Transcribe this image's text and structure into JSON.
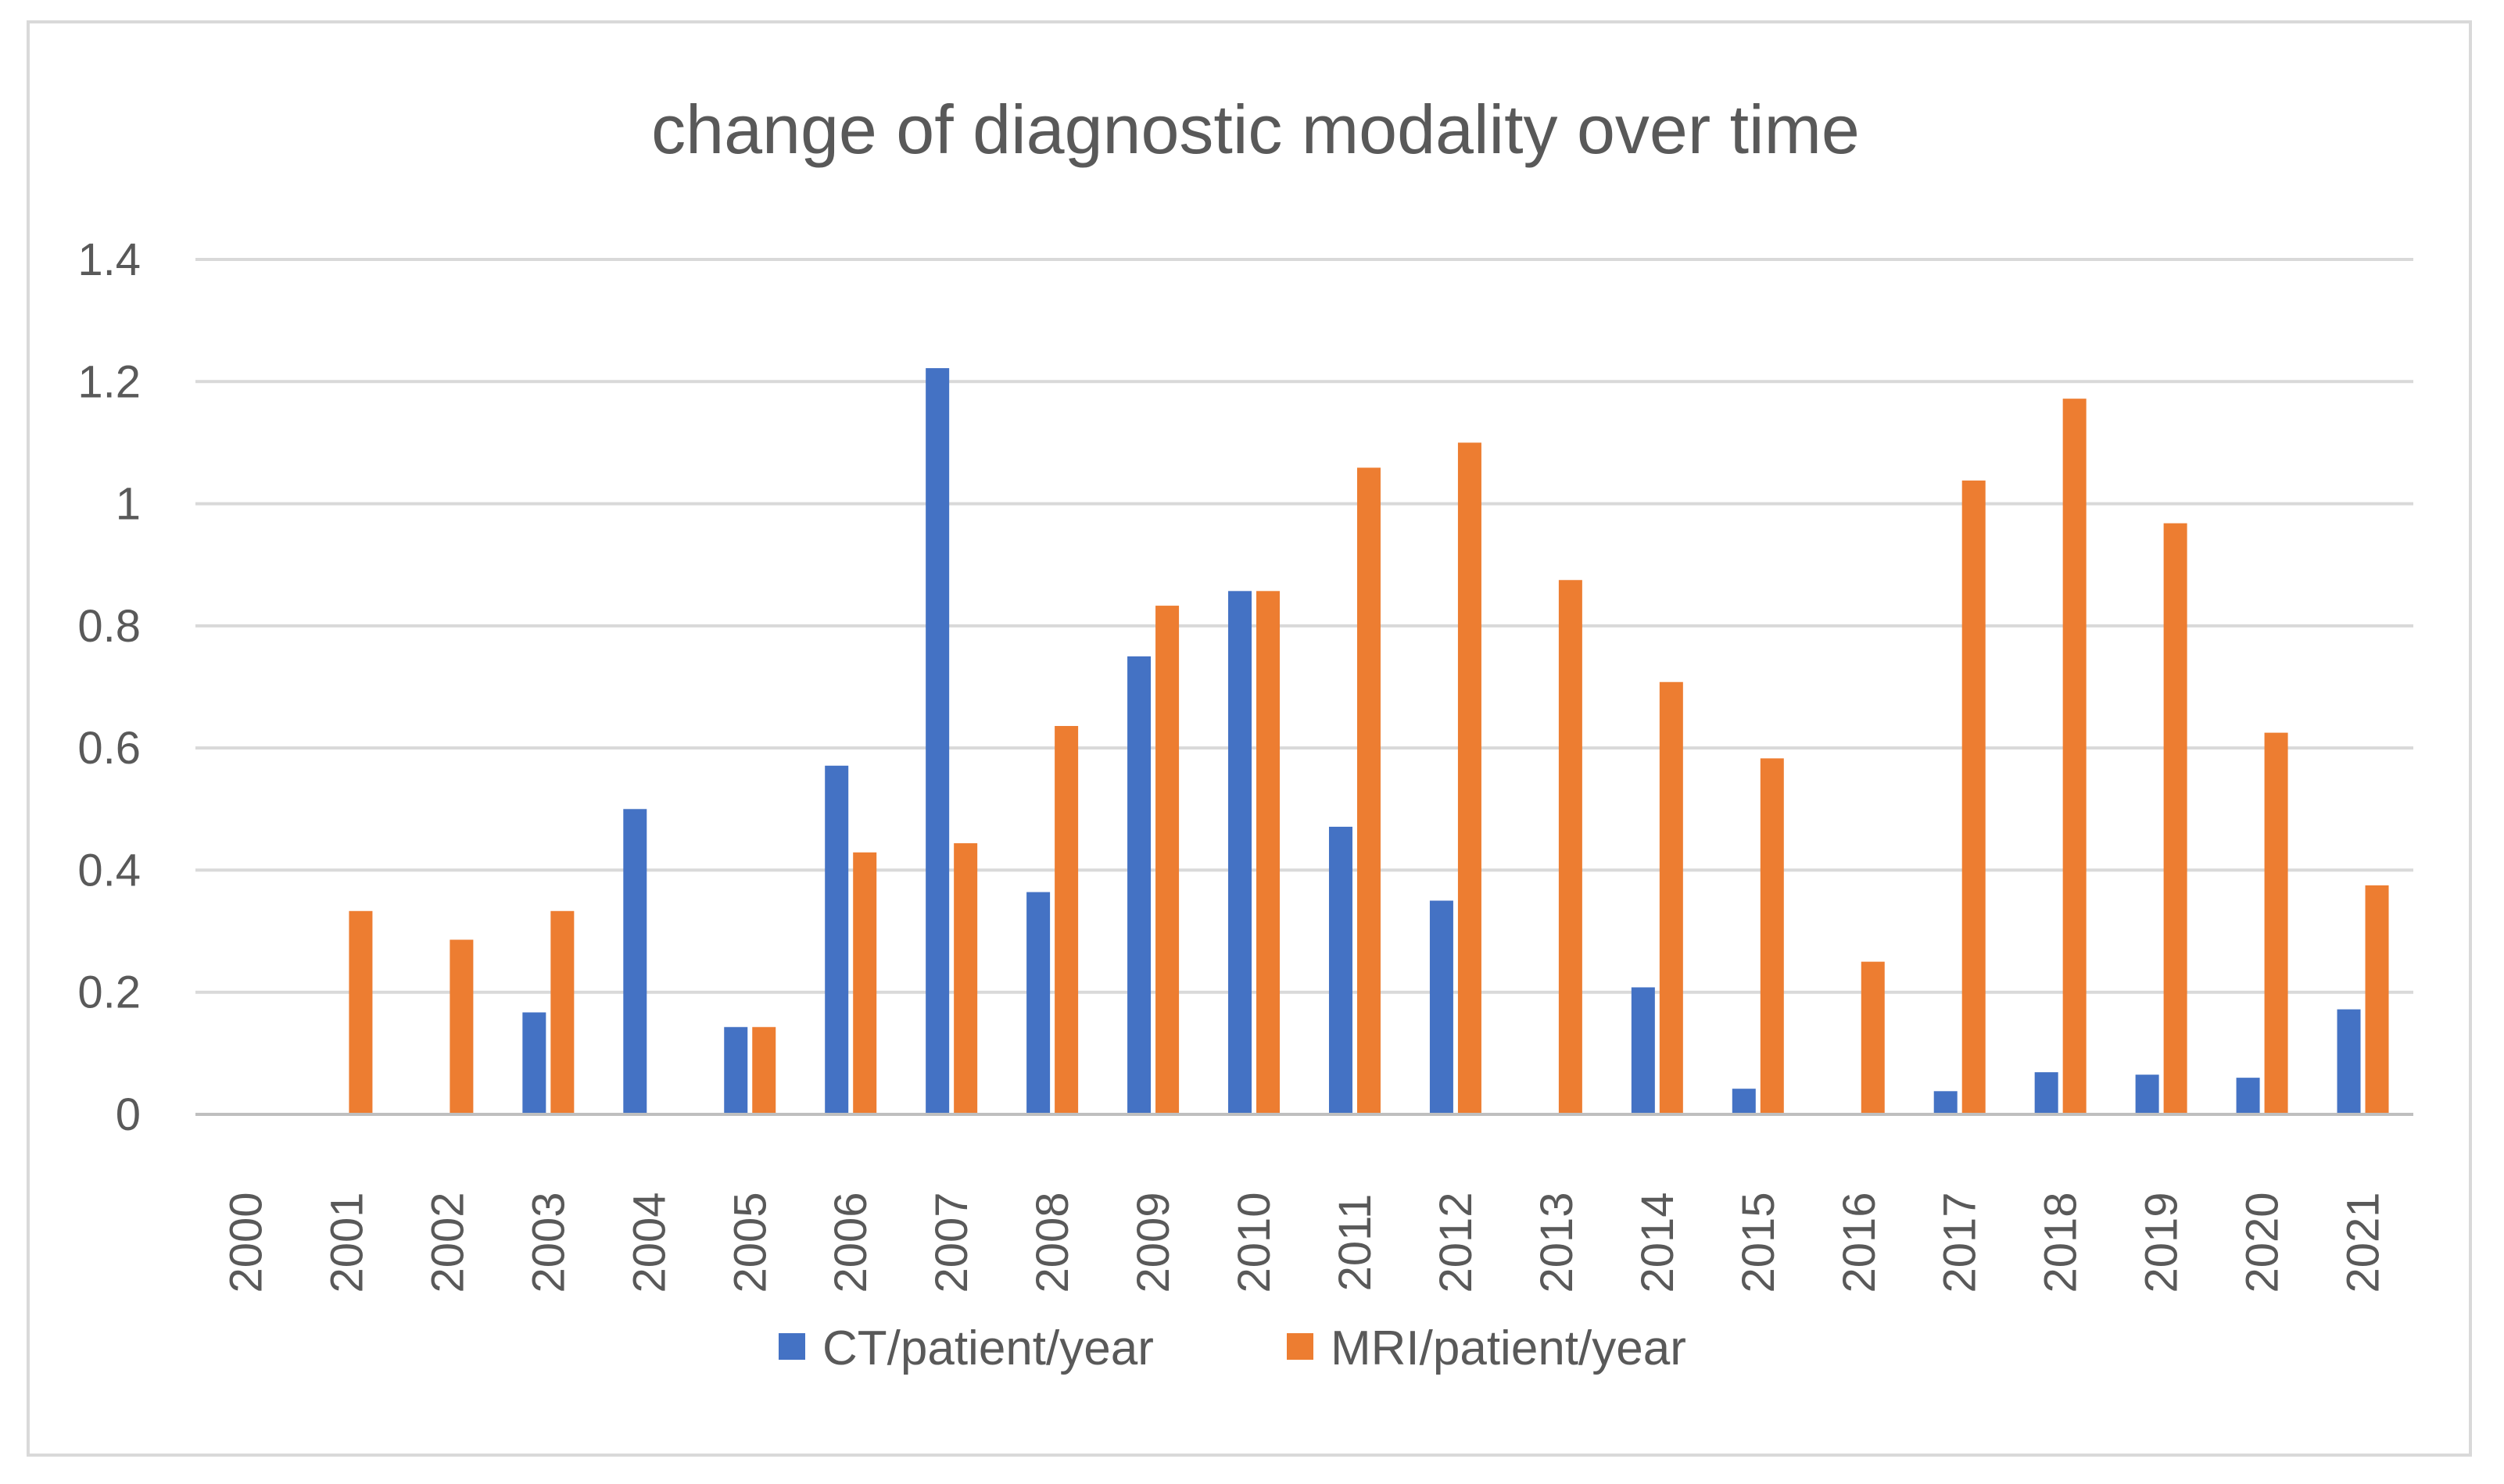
{
  "chart_data": {
    "type": "bar",
    "title": "change of diagnostic modality over time",
    "xlabel": "",
    "ylabel": "",
    "categories": [
      "2000",
      "2001",
      "2002",
      "2003",
      "2004",
      "2005",
      "2006",
      "2007",
      "2008",
      "2009",
      "2010",
      "2011",
      "2012",
      "2013",
      "2014",
      "2015",
      "2016",
      "2017",
      "2018",
      "2019",
      "2020",
      "2021"
    ],
    "series": [
      {
        "name": "CT/patient/year",
        "color": "#4472c4",
        "values": [
          0,
          0,
          0,
          0.167,
          0.5,
          0.143,
          0.571,
          1.222,
          0.364,
          0.75,
          0.857,
          0.471,
          0.35,
          0,
          0.208,
          0.042,
          0,
          0.038,
          0.069,
          0.065,
          0.06,
          0.172
        ]
      },
      {
        "name": "MRI/patient/year",
        "color": "#ed7d31",
        "values": [
          0,
          0.333,
          0.286,
          0.333,
          0,
          0.143,
          0.429,
          0.444,
          0.636,
          0.833,
          0.857,
          1.059,
          1.1,
          0.875,
          0.708,
          0.583,
          0.25,
          1.038,
          1.172,
          0.968,
          0.625,
          0.375
        ]
      }
    ],
    "y_ticks": [
      "0",
      "0.2",
      "0.4",
      "0.6",
      "0.8",
      "1",
      "1.2",
      "1.4"
    ],
    "ylim": [
      0,
      1.4
    ],
    "grid": true,
    "legend_position": "bottom"
  }
}
